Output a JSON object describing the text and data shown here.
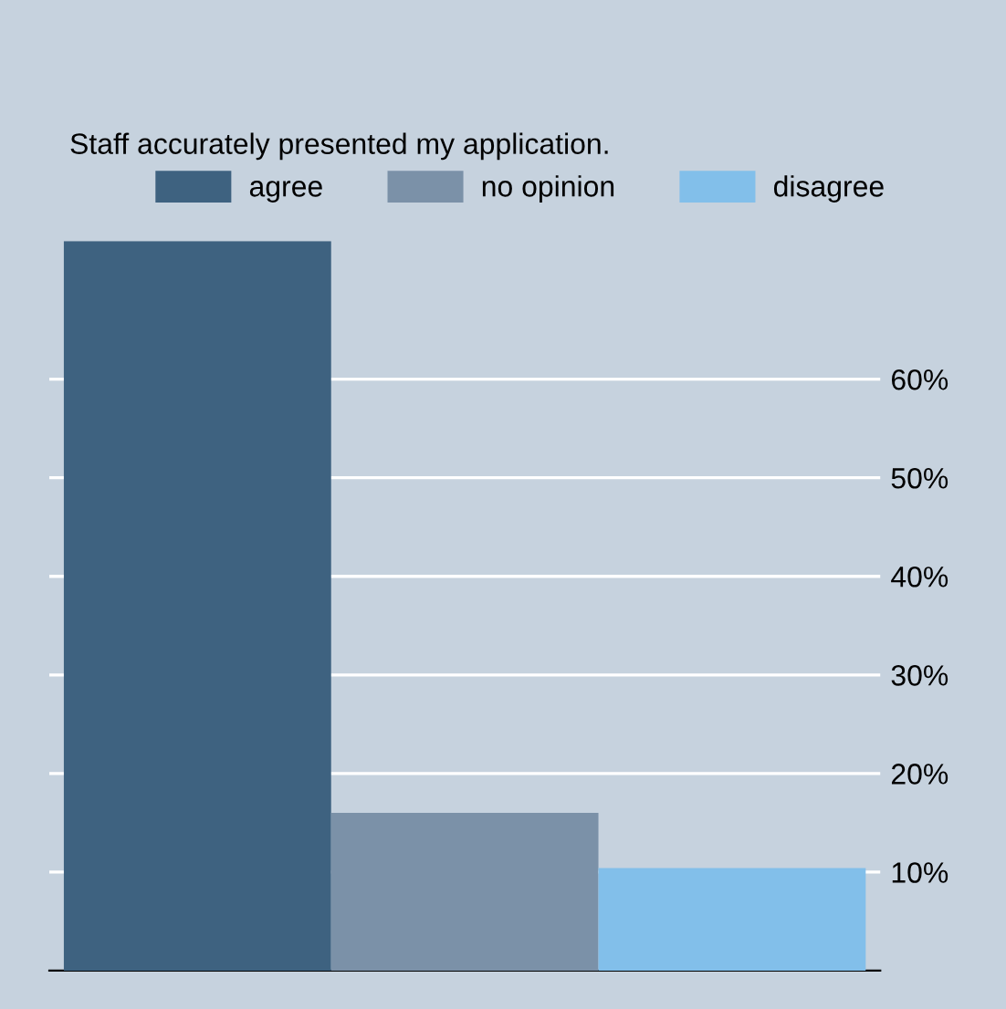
{
  "chart_data": {
    "type": "bar",
    "title": "Staff accurately presented my application.",
    "categories": [
      null
    ],
    "series": [
      {
        "name": "agree",
        "color": "#3e6280",
        "values": [
          74.0
        ]
      },
      {
        "name": "no opinion",
        "color": "#7b91a8",
        "values": [
          16.0
        ]
      },
      {
        "name": "disagree",
        "color": "#82bfea",
        "values": [
          10.4
        ]
      }
    ],
    "ylim": [
      0,
      74
    ],
    "yticks": [
      {
        "value": 10,
        "label": "10%"
      },
      {
        "value": 20,
        "label": "20%"
      },
      {
        "value": 30,
        "label": "30%"
      },
      {
        "value": 40,
        "label": "40%"
      },
      {
        "value": 50,
        "label": "50%"
      },
      {
        "value": 60,
        "label": "60%"
      }
    ],
    "grid": "y",
    "legend": "top"
  }
}
